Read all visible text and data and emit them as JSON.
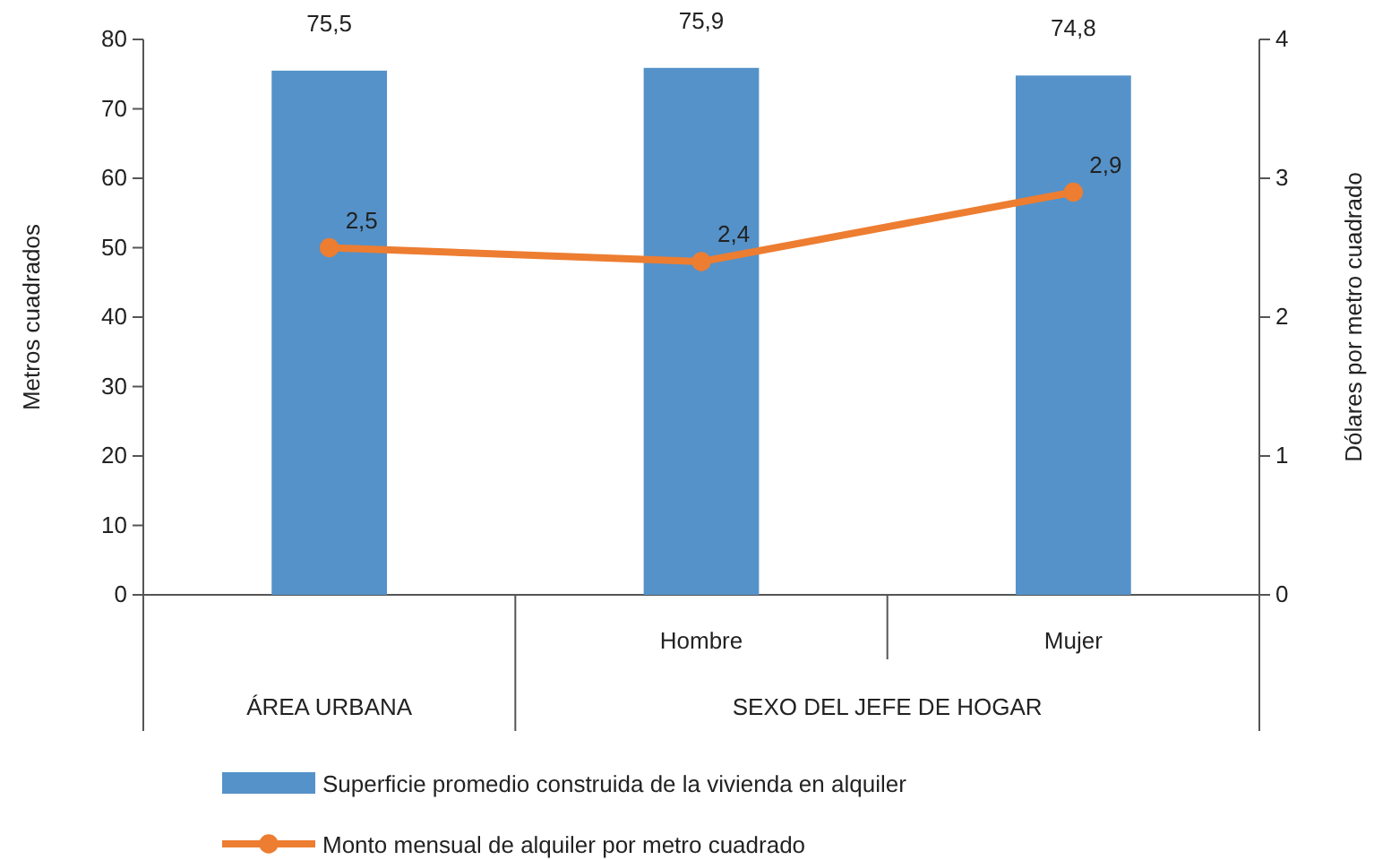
{
  "chart_data": {
    "type": "bar",
    "categories": [
      null,
      "Hombre",
      "Mujer"
    ],
    "ylabel": "Metros cuadrados",
    "y2label": "Dólares por metro cuadrado",
    "ylim": [
      0,
      80
    ],
    "yticks": [
      0,
      10,
      20,
      30,
      40,
      50,
      60,
      70,
      80
    ],
    "y2lim": [
      0,
      4
    ],
    "y2ticks": [
      0,
      1,
      2,
      3,
      4
    ],
    "series": [
      {
        "name": "Superficie promedio construida de la vivienda en alquiler",
        "color": "#5592c9",
        "values": [
          75.5,
          75.9,
          74.8
        ],
        "value_labels": [
          "75,5",
          "75,9",
          "74,8"
        ]
      },
      {
        "name": "Monto mensual de alquiler por metro cuadrado",
        "type": "line",
        "axis": "y2",
        "color": "#ed7d31",
        "marker": "circle",
        "values": [
          2.5,
          2.4,
          2.9
        ],
        "value_labels": [
          "2,5",
          "2,4",
          "2,9"
        ]
      }
    ],
    "annotations": [
      "ÁREA URBANA",
      "SEXO DEL JEFE DE HOGAR"
    ],
    "legend": "bottom",
    "grid": false
  }
}
